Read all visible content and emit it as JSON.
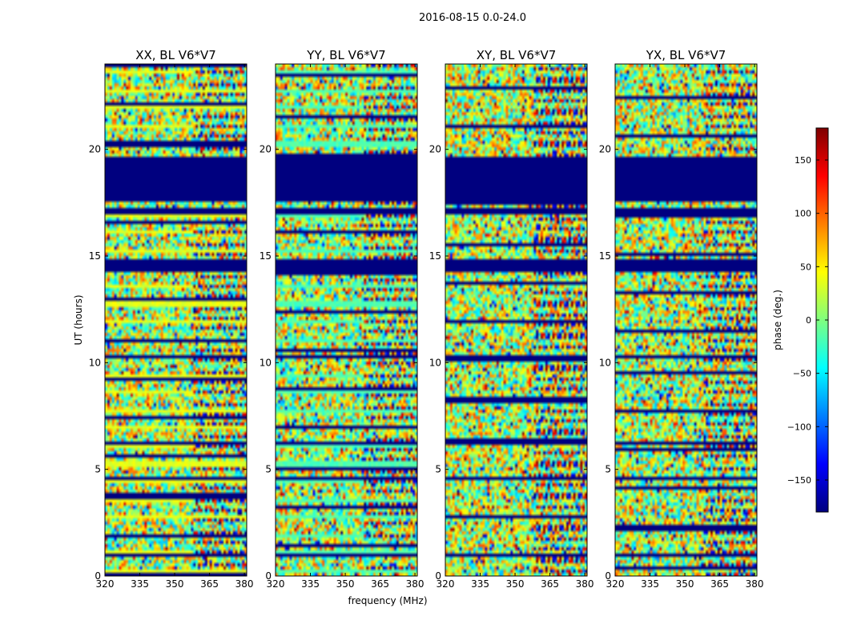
{
  "figure": {
    "suptitle": "2016-08-15 0.0-24.0",
    "xlabel": "frequency (MHz)",
    "ylabel": "UT (hours)"
  },
  "colorbar": {
    "label": "phase (deg.)",
    "vmin": -180,
    "vmax": 180,
    "ticks": [
      -150,
      -100,
      -50,
      0,
      50,
      100,
      150
    ],
    "tick_labels": [
      "−150",
      "−100",
      "−50",
      "0",
      "50",
      "100",
      "150"
    ],
    "colormap": "jet",
    "colors": [
      "#00007f",
      "#0000ff",
      "#007fff",
      "#00ffff",
      "#7fff7f",
      "#ffff00",
      "#ff7f00",
      "#ff0000",
      "#7f0000"
    ]
  },
  "chart_data": [
    {
      "type": "heatmap",
      "title": "XX, BL V6*V7",
      "x_range": [
        320,
        381
      ],
      "y_range": [
        0,
        24
      ],
      "x_ticks": [
        320,
        335,
        350,
        365,
        380
      ],
      "y_ticks": [
        0,
        5,
        10,
        15,
        20
      ],
      "value": "phase (deg.)",
      "flagged_hours": [
        [
          17.6,
          19.7
        ],
        [
          14.3,
          14.9
        ],
        [
          16.9,
          17.2
        ],
        [
          10.2,
          10.4
        ],
        [
          6.1,
          6.3
        ],
        [
          4.5,
          4.6
        ],
        [
          0.9,
          1.0
        ]
      ]
    },
    {
      "type": "heatmap",
      "title": "YY, BL V6*V7",
      "x_range": [
        320,
        381
      ],
      "y_range": [
        0,
        24
      ],
      "x_ticks": [
        320,
        335,
        350,
        365,
        380
      ],
      "y_ticks": [
        0,
        5,
        10,
        15,
        20
      ],
      "value": "phase (deg.)",
      "flagged_hours": [
        [
          17.6,
          19.7
        ],
        [
          14.3,
          14.9
        ],
        [
          16.9,
          17.2
        ],
        [
          10.2,
          10.4
        ],
        [
          6.1,
          6.3
        ],
        [
          4.5,
          4.6
        ],
        [
          0.9,
          1.0
        ]
      ]
    },
    {
      "type": "heatmap",
      "title": "XY, BL V6*V7",
      "x_range": [
        320,
        381
      ],
      "y_range": [
        0,
        24
      ],
      "x_ticks": [
        320,
        335,
        350,
        365,
        380
      ],
      "y_ticks": [
        0,
        5,
        10,
        15,
        20
      ],
      "value": "phase (deg.)",
      "flagged_hours": [
        [
          17.6,
          19.7
        ],
        [
          14.3,
          14.9
        ],
        [
          16.9,
          17.2
        ],
        [
          10.2,
          10.4
        ],
        [
          6.1,
          6.3
        ],
        [
          4.5,
          4.6
        ],
        [
          0.9,
          1.0
        ]
      ]
    },
    {
      "type": "heatmap",
      "title": "YX, BL V6*V7",
      "x_range": [
        320,
        381
      ],
      "y_range": [
        0,
        24
      ],
      "x_ticks": [
        320,
        335,
        350,
        365,
        380
      ],
      "y_ticks": [
        0,
        5,
        10,
        15,
        20
      ],
      "value": "phase (deg.)",
      "flagged_hours": [
        [
          17.6,
          19.7
        ],
        [
          14.3,
          14.9
        ],
        [
          16.9,
          17.2
        ],
        [
          10.2,
          10.4
        ],
        [
          6.1,
          6.3
        ],
        [
          4.5,
          4.6
        ],
        [
          0.9,
          1.0
        ]
      ]
    }
  ]
}
